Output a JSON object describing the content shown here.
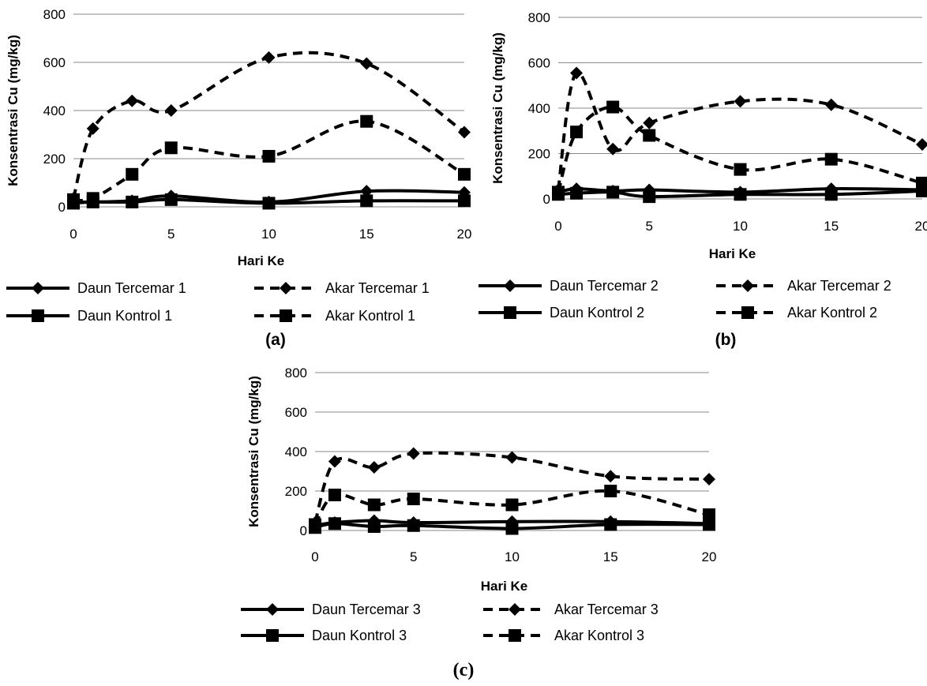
{
  "chart_data": [
    {
      "type": "line",
      "panel_label": "(a)",
      "xlabel": "Hari Ke",
      "ylabel": "Konsentrasi Cu (mg/kg)",
      "x": [
        0,
        1,
        3,
        5,
        10,
        15,
        20
      ],
      "x_ticks": [
        "0",
        "5",
        "10",
        "15",
        "20"
      ],
      "y_ticks": [
        "0",
        "200",
        "400",
        "600",
        "800"
      ],
      "xlim": [
        0,
        20
      ],
      "ylim": [
        0,
        800
      ],
      "grid": "horizontal",
      "legend_position": "bottom",
      "series": [
        {
          "name": "Daun Tercemar 1",
          "marker": "diamond",
          "style": "solid",
          "values": [
            20,
            20,
            25,
            45,
            20,
            65,
            60
          ]
        },
        {
          "name": "Akar Tercemar 1",
          "marker": "diamond",
          "style": "dashed",
          "values": [
            35,
            325,
            440,
            400,
            620,
            595,
            310
          ]
        },
        {
          "name": "Daun Kontrol 1",
          "marker": "square",
          "style": "solid",
          "values": [
            15,
            20,
            20,
            30,
            15,
            25,
            25
          ]
        },
        {
          "name": "Akar Kontrol 1",
          "marker": "square",
          "style": "dashed",
          "values": [
            30,
            35,
            135,
            245,
            210,
            355,
            135
          ]
        }
      ]
    },
    {
      "type": "line",
      "panel_label": "(b)",
      "xlabel": "Hari Ke",
      "ylabel": "Konsentrasi Cu (mg/kg)",
      "x": [
        0,
        1,
        3,
        5,
        10,
        15,
        20
      ],
      "x_ticks": [
        "0",
        "5",
        "10",
        "15",
        "20"
      ],
      "y_ticks": [
        "0",
        "200",
        "400",
        "600",
        "800"
      ],
      "xlim": [
        0,
        20
      ],
      "ylim": [
        0,
        800
      ],
      "grid": "horizontal",
      "legend_position": "bottom",
      "series": [
        {
          "name": "Daun Tercemar 2",
          "marker": "diamond",
          "style": "solid",
          "values": [
            30,
            45,
            35,
            40,
            30,
            45,
            40
          ]
        },
        {
          "name": "Akar Tercemar 2",
          "marker": "diamond",
          "style": "dashed",
          "values": [
            40,
            555,
            220,
            335,
            430,
            415,
            240
          ]
        },
        {
          "name": "Daun Kontrol 2",
          "marker": "square",
          "style": "solid",
          "values": [
            20,
            25,
            30,
            10,
            20,
            20,
            35
          ]
        },
        {
          "name": "Akar Kontrol 2",
          "marker": "square",
          "style": "dashed",
          "values": [
            30,
            295,
            405,
            280,
            130,
            175,
            70
          ]
        }
      ]
    },
    {
      "type": "line",
      "panel_label": "(c)",
      "xlabel": "Hari Ke",
      "ylabel": "Konsentrasi Cu (mg/kg)",
      "x": [
        0,
        1,
        3,
        5,
        10,
        15,
        20
      ],
      "x_ticks": [
        "0",
        "5",
        "10",
        "15",
        "20"
      ],
      "y_ticks": [
        "0",
        "200",
        "400",
        "600",
        "800"
      ],
      "xlim": [
        0,
        20
      ],
      "ylim": [
        0,
        800
      ],
      "grid": "horizontal",
      "legend_position": "bottom",
      "series": [
        {
          "name": "Daun Tercemar 3",
          "marker": "diamond",
          "style": "solid",
          "values": [
            25,
            40,
            50,
            40,
            45,
            45,
            35
          ]
        },
        {
          "name": "Akar Tercemar 3",
          "marker": "diamond",
          "style": "dashed",
          "values": [
            40,
            350,
            320,
            390,
            370,
            275,
            260
          ]
        },
        {
          "name": "Daun Kontrol 3",
          "marker": "square",
          "style": "solid",
          "values": [
            15,
            35,
            20,
            25,
            10,
            30,
            30
          ]
        },
        {
          "name": "Akar Kontrol 3",
          "marker": "square",
          "style": "dashed",
          "values": [
            30,
            180,
            130,
            160,
            130,
            200,
            80
          ]
        }
      ]
    }
  ]
}
